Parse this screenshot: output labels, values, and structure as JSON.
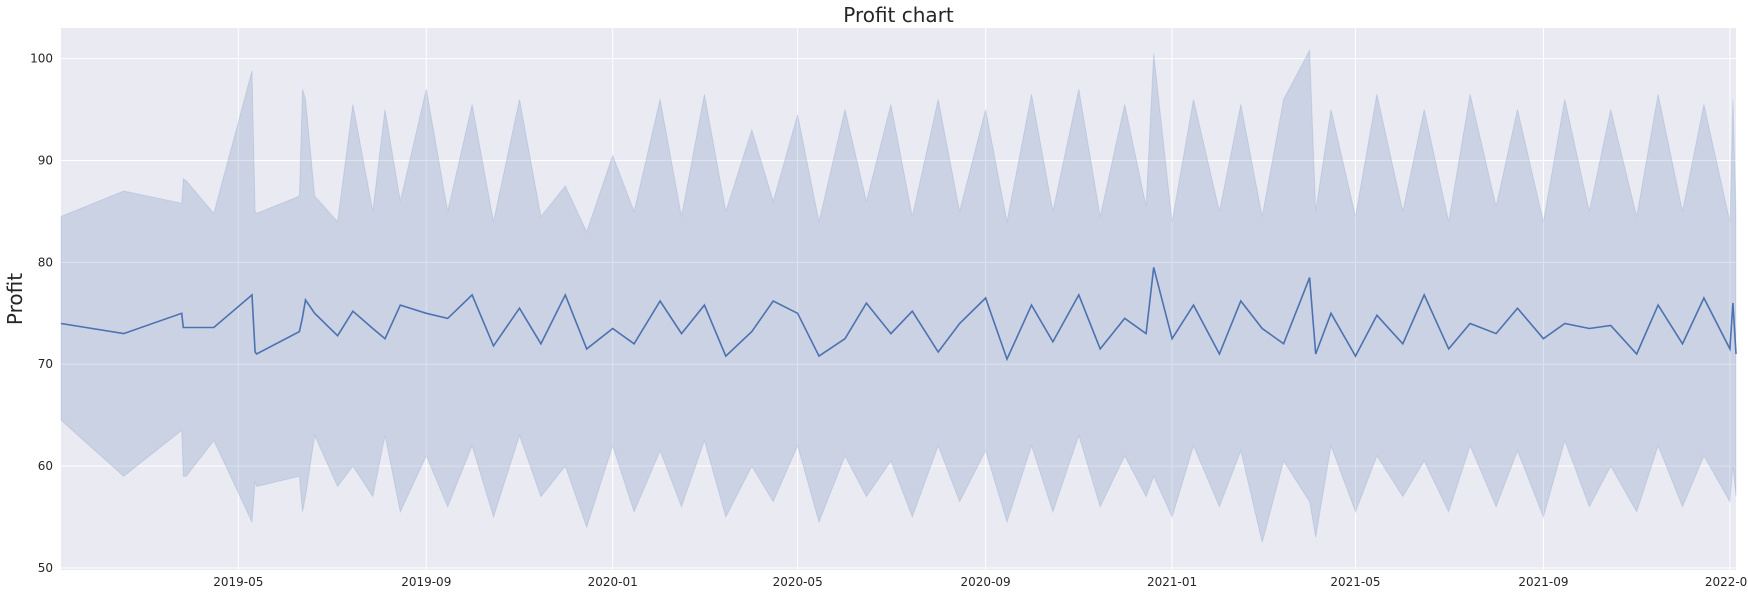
{
  "chart_data": {
    "type": "line",
    "title": "Profit chart",
    "xlabel": "",
    "ylabel": "Profit",
    "ylim": [
      49.8,
      103
    ],
    "xlim": [
      "2019-01-05",
      "2022-01-05"
    ],
    "grid": true,
    "legend": "none",
    "colors": {
      "background": "#eaeaf2",
      "grid": "#ffffff",
      "line": "#4c72b0",
      "band": "#4c72b0"
    },
    "yticks": [
      50,
      60,
      70,
      80,
      90,
      100
    ],
    "xticks": [
      "2019-05",
      "2019-09",
      "2020-01",
      "2020-05",
      "2020-09",
      "2021-01",
      "2021-05",
      "2021-09",
      "2022-01"
    ],
    "series": [
      {
        "x": [
          "2019-01-05",
          "2019-02-15",
          "2019-03-25",
          "2019-03-26",
          "2019-03-28",
          "2019-04-15",
          "2019-05-10",
          "2019-05-12",
          "2019-05-13",
          "2019-06-10",
          "2019-06-12",
          "2019-06-14",
          "2019-06-20",
          "2019-07-05",
          "2019-07-15",
          "2019-07-28",
          "2019-08-05",
          "2019-08-15",
          "2019-09-01",
          "2019-09-15",
          "2019-10-01",
          "2019-10-15",
          "2019-11-01",
          "2019-11-15",
          "2019-12-01",
          "2019-12-15",
          "2020-01-01",
          "2020-01-15",
          "2020-02-01",
          "2020-02-15",
          "2020-03-01",
          "2020-03-15",
          "2020-04-01",
          "2020-04-15",
          "2020-05-01",
          "2020-05-15",
          "2020-06-01",
          "2020-06-15",
          "2020-07-01",
          "2020-07-15",
          "2020-08-01",
          "2020-08-15",
          "2020-09-01",
          "2020-09-15",
          "2020-10-01",
          "2020-10-15",
          "2020-11-01",
          "2020-11-15",
          "2020-12-01",
          "2020-12-15",
          "2020-12-20",
          "2021-01-01",
          "2021-01-15",
          "2021-02-01",
          "2021-02-15",
          "2021-03-01",
          "2021-03-15",
          "2021-04-01",
          "2021-04-05",
          "2021-04-15",
          "2021-05-01",
          "2021-05-15",
          "2021-06-01",
          "2021-06-15",
          "2021-07-01",
          "2021-07-15",
          "2021-08-01",
          "2021-08-15",
          "2021-09-01",
          "2021-09-15",
          "2021-10-01",
          "2021-10-15",
          "2021-11-01",
          "2021-11-15",
          "2021-12-01",
          "2021-12-15",
          "2022-01-01",
          "2022-01-03",
          "2022-01-05"
        ],
        "y": [
          74.0,
          73.0,
          75.0,
          73.6,
          73.6,
          73.6,
          76.8,
          71.2,
          71.0,
          73.2,
          74.6,
          76.3,
          75.0,
          72.8,
          75.2,
          73.5,
          72.5,
          75.8,
          75.0,
          74.5,
          76.8,
          71.8,
          75.5,
          72.0,
          76.8,
          71.5,
          73.5,
          72.0,
          76.2,
          73.0,
          75.8,
          70.8,
          73.2,
          76.2,
          75.0,
          70.8,
          72.5,
          76.0,
          73.0,
          75.2,
          71.2,
          74.0,
          76.5,
          70.5,
          75.8,
          72.2,
          76.8,
          71.5,
          74.5,
          73.0,
          79.5,
          72.5,
          75.8,
          71.0,
          76.2,
          73.5,
          72.0,
          78.5,
          71.0,
          75.0,
          70.8,
          74.8,
          72.0,
          76.8,
          71.5,
          74.0,
          73.0,
          75.5,
          72.5,
          74.0,
          73.5,
          73.8,
          71.0,
          75.8,
          72.0,
          76.5,
          71.5,
          76.0,
          71.0
        ],
        "upper": [
          84.5,
          87.0,
          85.8,
          88.2,
          88.0,
          84.8,
          98.8,
          85.0,
          84.8,
          86.5,
          97.0,
          96.0,
          86.5,
          84.0,
          95.5,
          85.0,
          95.0,
          86.0,
          97.0,
          85.0,
          95.5,
          84.0,
          96.0,
          84.5,
          87.5,
          83.0,
          90.5,
          85.0,
          96.0,
          84.5,
          96.5,
          85.0,
          93.0,
          86.0,
          94.5,
          84.0,
          95.0,
          86.0,
          95.5,
          84.5,
          96.0,
          85.0,
          95.0,
          84.0,
          96.5,
          85.0,
          97.0,
          84.5,
          95.5,
          85.5,
          100.5,
          84.0,
          96.0,
          85.0,
          95.5,
          84.5,
          96.0,
          100.8,
          85.0,
          95.0,
          84.5,
          96.5,
          85.0,
          95.0,
          84.0,
          96.5,
          85.5,
          95.0,
          84.0,
          96.0,
          85.0,
          95.0,
          84.5,
          96.5,
          85.0,
          95.5,
          84.0,
          96.0,
          85.0
        ],
        "lower": [
          64.5,
          59.0,
          63.5,
          59.0,
          59.0,
          62.5,
          54.5,
          58.5,
          58.0,
          59.0,
          55.5,
          57.0,
          63.0,
          58.0,
          60.0,
          57.0,
          63.0,
          55.5,
          61.0,
          56.0,
          62.0,
          55.0,
          63.0,
          57.0,
          60.0,
          54.0,
          62.0,
          55.5,
          61.5,
          56.0,
          62.5,
          55.0,
          60.0,
          56.5,
          62.0,
          54.5,
          61.0,
          57.0,
          60.5,
          55.0,
          62.0,
          56.5,
          61.5,
          54.5,
          62.0,
          55.5,
          63.0,
          56.0,
          61.0,
          57.0,
          59.0,
          55.0,
          62.0,
          56.0,
          61.5,
          52.5,
          60.5,
          56.5,
          53.0,
          62.0,
          55.5,
          61.0,
          57.0,
          60.5,
          55.5,
          62.0,
          56.0,
          61.5,
          55.0,
          62.5,
          56.0,
          60.0,
          55.5,
          62.0,
          56.0,
          61.0,
          56.5,
          60.0,
          57.0
        ]
      }
    ]
  }
}
